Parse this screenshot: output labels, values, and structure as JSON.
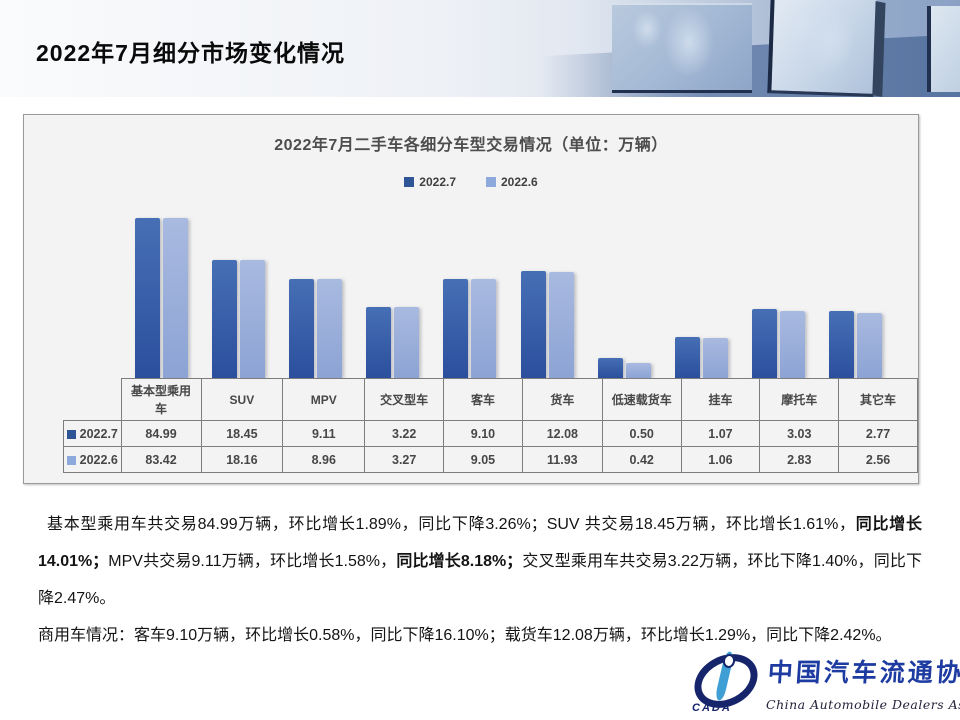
{
  "header": {
    "title": "2022年7月细分市场变化情况"
  },
  "chart": {
    "title": "2022年7月二手车各细分车型交易情况（单位：万辆）"
  },
  "chart_data": {
    "type": "bar",
    "title": "2022年7月二手车各细分车型交易情况（单位：万辆）",
    "categories": [
      "基本型乘用车",
      "SUV",
      "MPV",
      "交叉型车",
      "客车",
      "货车",
      "低速载货车",
      "挂车",
      "摩托车",
      "其它车"
    ],
    "series": [
      {
        "name": "2022.7",
        "color": "#2F5597",
        "values": [
          84.99,
          18.45,
          9.11,
          3.22,
          9.1,
          12.08,
          0.5,
          1.07,
          3.03,
          2.77
        ]
      },
      {
        "name": "2022.6",
        "color": "#8EA9DB",
        "values": [
          83.42,
          18.16,
          8.96,
          3.27,
          9.05,
          11.93,
          0.42,
          1.06,
          2.83,
          2.56
        ]
      }
    ],
    "unit": "万辆",
    "value_scale": "log",
    "legend_position": "top",
    "grid": false,
    "data_table_shown": true
  },
  "paragraphs": {
    "p1": {
      "seg1": "基本型乘用车共交易84.99万辆，环比增长1.89%，同比下降3.26%；SUV 共交易18.45万辆，环比增长1.61%，",
      "bold1": "同比增长14.01%；",
      "seg2": "MPV共交易9.11万辆，环比增长1.58%，",
      "bold2": "同比增长8.18%；",
      "seg3": "交叉型乘用车共交易3.22万辆，环比下降1.40%，同比下降2.47%。"
    },
    "p2": "商用车情况：客车9.10万辆，环比增长0.58%，同比下降16.10%；载货车12.08万辆，环比增长1.29%，同比下降2.42%。"
  },
  "logo": {
    "cada": "CADA",
    "name_cn": "中国汽车流通协会",
    "name_en": "China Automobile Dealers Association"
  }
}
